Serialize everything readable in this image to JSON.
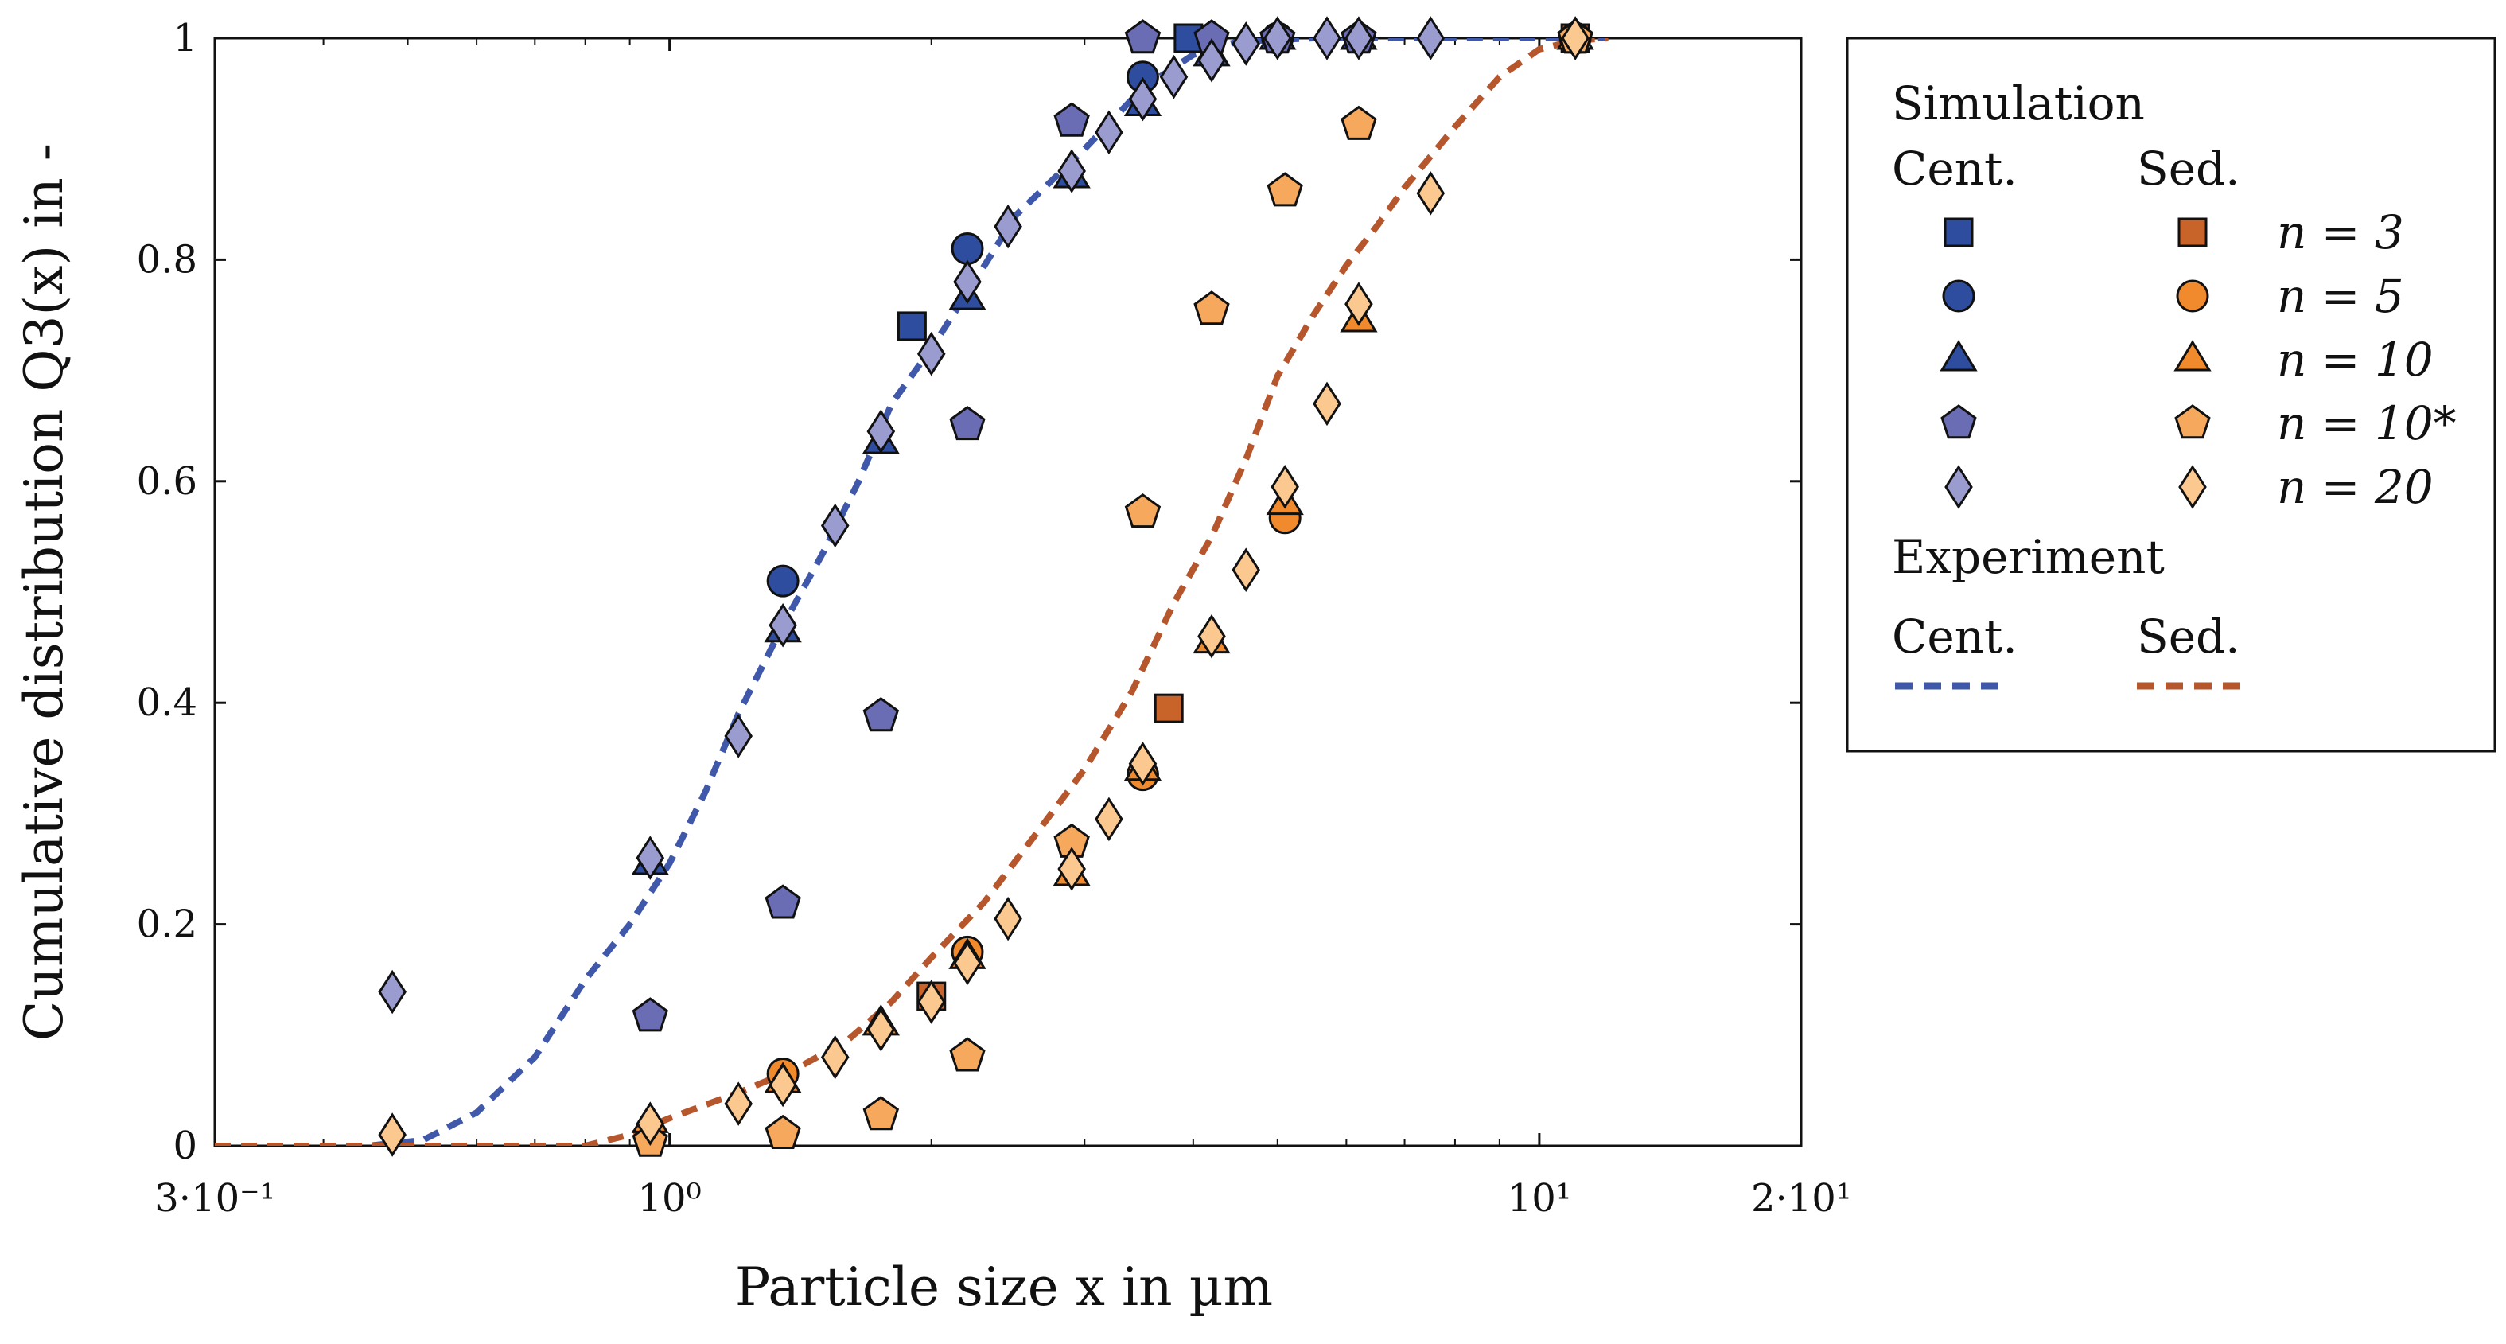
{
  "chart_data": {
    "type": "scatter",
    "title": "",
    "xlabel": "Particle size x in µm",
    "ylabel": "Cumulative distribution Q3(x) in -",
    "xscale": "log",
    "xlim": [
      0.3,
      20
    ],
    "ylim": [
      0,
      1
    ],
    "x_ticks": [
      {
        "value": 0.3,
        "label": "3·10⁻¹"
      },
      {
        "value": 1,
        "label": "10⁰"
      },
      {
        "value": 10,
        "label": "10¹"
      },
      {
        "value": 20,
        "label": "2·10¹"
      }
    ],
    "y_ticks": [
      {
        "value": 0,
        "label": "0"
      },
      {
        "value": 0.2,
        "label": "0.2"
      },
      {
        "value": 0.4,
        "label": "0.4"
      },
      {
        "value": 0.6,
        "label": "0.6"
      },
      {
        "value": 0.8,
        "label": "0.8"
      },
      {
        "value": 1,
        "label": "1"
      }
    ],
    "legend_position": "outside-right",
    "colors": {
      "cent_fill": "#2e4d9e",
      "cent_pent_fill": "#6a6db3",
      "cent_diam_fill": "#9a9cd0",
      "sed_sq_fill": "#c8632a",
      "sed_circ_fill": "#f08a2c",
      "sed_pent_fill": "#f6a85c",
      "sed_diam_fill": "#fbc88f",
      "cent_line": "#3f58aa",
      "sed_line": "#b5562c"
    },
    "series": [
      {
        "name": "Cent. n = 3",
        "group": "centrifugation",
        "marker": "square",
        "fill": "#2e4d9e",
        "points": [
          [
            1.9,
            0.74
          ],
          [
            3.95,
            1.0
          ]
        ]
      },
      {
        "name": "Cent. n = 5",
        "group": "centrifugation",
        "marker": "circle",
        "fill": "#2e4d9e",
        "points": [
          [
            1.35,
            0.51
          ],
          [
            2.2,
            0.81
          ],
          [
            3.5,
            0.965
          ],
          [
            5,
            1.0
          ]
        ]
      },
      {
        "name": "Cent. n = 10",
        "group": "centrifugation",
        "marker": "triangle",
        "fill": "#2e4d9e",
        "points": [
          [
            0.95,
            0.255
          ],
          [
            1.35,
            0.465
          ],
          [
            1.75,
            0.635
          ],
          [
            2.2,
            0.765
          ],
          [
            2.9,
            0.875
          ],
          [
            3.5,
            0.94
          ],
          [
            4.2,
            0.985
          ],
          [
            5,
            1.0
          ],
          [
            6.2,
            1.0
          ]
        ]
      },
      {
        "name": "Cent. n = 10*",
        "group": "centrifugation",
        "marker": "pentagon",
        "fill": "#6a6db3",
        "points": [
          [
            0.95,
            0.117
          ],
          [
            1.35,
            0.219
          ],
          [
            1.75,
            0.388
          ],
          [
            2.2,
            0.651
          ],
          [
            2.9,
            0.925
          ],
          [
            3.5,
            1.0
          ],
          [
            4.2,
            1.0
          ],
          [
            5,
            1.0
          ],
          [
            6.2,
            1.0
          ],
          [
            11,
            1.0
          ]
        ]
      },
      {
        "name": "Cent. n = 20",
        "group": "centrifugation",
        "marker": "diamond",
        "fill": "#9a9cd0",
        "points": [
          [
            0.48,
            0.139
          ],
          [
            0.95,
            0.26
          ],
          [
            1.2,
            0.37
          ],
          [
            1.35,
            0.47
          ],
          [
            1.55,
            0.56
          ],
          [
            1.75,
            0.645
          ],
          [
            2.0,
            0.715
          ],
          [
            2.2,
            0.78
          ],
          [
            2.45,
            0.83
          ],
          [
            2.9,
            0.88
          ],
          [
            3.2,
            0.915
          ],
          [
            3.5,
            0.945
          ],
          [
            3.8,
            0.965
          ],
          [
            4.2,
            0.98
          ],
          [
            4.6,
            0.995
          ],
          [
            5,
            1.0
          ],
          [
            5.7,
            1.0
          ],
          [
            6.2,
            1.0
          ],
          [
            7.5,
            1.0
          ],
          [
            11,
            1.0
          ]
        ]
      },
      {
        "name": "Sed. n = 3",
        "group": "sedimentation",
        "marker": "square",
        "fill": "#c8632a",
        "points": [
          [
            2.0,
            0.135
          ],
          [
            3.75,
            0.395
          ],
          [
            11,
            1.0
          ]
        ]
      },
      {
        "name": "Sed. n = 5",
        "group": "sedimentation",
        "marker": "circle",
        "fill": "#f08a2c",
        "points": [
          [
            1.35,
            0.065
          ],
          [
            2.2,
            0.175
          ],
          [
            3.5,
            0.335
          ],
          [
            5.1,
            0.567
          ],
          [
            11,
            1.0
          ]
        ]
      },
      {
        "name": "Sed. n = 10",
        "group": "sedimentation",
        "marker": "triangle",
        "fill": "#f08a2c",
        "points": [
          [
            0.95,
            0.022
          ],
          [
            1.35,
            0.058
          ],
          [
            1.75,
            0.11
          ],
          [
            2.2,
            0.17
          ],
          [
            2.9,
            0.245
          ],
          [
            3.5,
            0.34
          ],
          [
            4.2,
            0.455
          ],
          [
            5.1,
            0.58
          ],
          [
            6.2,
            0.745
          ],
          [
            11,
            1.0
          ]
        ]
      },
      {
        "name": "Sed. n = 10*",
        "group": "sedimentation",
        "marker": "pentagon",
        "fill": "#f6a85c",
        "points": [
          [
            0.95,
            0.004
          ],
          [
            1.35,
            0.011
          ],
          [
            1.75,
            0.028
          ],
          [
            2.2,
            0.081
          ],
          [
            2.9,
            0.274
          ],
          [
            3.5,
            0.572
          ],
          [
            4.2,
            0.755
          ],
          [
            5.1,
            0.862
          ],
          [
            6.2,
            0.922
          ],
          [
            11,
            1.0
          ]
        ]
      },
      {
        "name": "Sed. n = 20",
        "group": "sedimentation",
        "marker": "diamond",
        "fill": "#fbc88f",
        "points": [
          [
            0.48,
            0.01
          ],
          [
            0.95,
            0.02
          ],
          [
            1.2,
            0.038
          ],
          [
            1.35,
            0.055
          ],
          [
            1.55,
            0.08
          ],
          [
            1.75,
            0.105
          ],
          [
            2.0,
            0.13
          ],
          [
            2.2,
            0.165
          ],
          [
            2.45,
            0.205
          ],
          [
            2.9,
            0.25
          ],
          [
            3.2,
            0.295
          ],
          [
            3.5,
            0.345
          ],
          [
            4.2,
            0.46
          ],
          [
            4.6,
            0.52
          ],
          [
            5.1,
            0.595
          ],
          [
            5.7,
            0.67
          ],
          [
            6.2,
            0.76
          ],
          [
            7.5,
            0.86
          ],
          [
            11,
            1.0
          ]
        ]
      }
    ],
    "lines": [
      {
        "name": "Experiment Cent.",
        "group": "centrifugation",
        "style": "dashed",
        "color": "#3f58aa",
        "points": [
          [
            0.3,
            0.0
          ],
          [
            0.45,
            0.0
          ],
          [
            0.52,
            0.005
          ],
          [
            0.6,
            0.03
          ],
          [
            0.7,
            0.08
          ],
          [
            0.8,
            0.15
          ],
          [
            0.9,
            0.2
          ],
          [
            1.0,
            0.255
          ],
          [
            1.1,
            0.32
          ],
          [
            1.2,
            0.39
          ],
          [
            1.35,
            0.47
          ],
          [
            1.5,
            0.535
          ],
          [
            1.65,
            0.6
          ],
          [
            1.8,
            0.67
          ],
          [
            2.0,
            0.72
          ],
          [
            2.2,
            0.77
          ],
          [
            2.5,
            0.84
          ],
          [
            3.0,
            0.9
          ],
          [
            3.5,
            0.955
          ],
          [
            4.0,
            0.985
          ],
          [
            4.5,
            0.997
          ],
          [
            5.5,
            1.0
          ],
          [
            12,
            1.0
          ]
        ]
      },
      {
        "name": "Experiment Sed.",
        "group": "sedimentation",
        "style": "dashed",
        "color": "#b5562c",
        "points": [
          [
            0.3,
            0.0
          ],
          [
            0.8,
            0.0
          ],
          [
            0.9,
            0.01
          ],
          [
            1.0,
            0.025
          ],
          [
            1.2,
            0.048
          ],
          [
            1.4,
            0.07
          ],
          [
            1.6,
            0.095
          ],
          [
            1.8,
            0.13
          ],
          [
            2.0,
            0.17
          ],
          [
            2.3,
            0.22
          ],
          [
            2.6,
            0.275
          ],
          [
            3.0,
            0.34
          ],
          [
            3.4,
            0.41
          ],
          [
            3.8,
            0.49
          ],
          [
            4.2,
            0.55
          ],
          [
            4.6,
            0.62
          ],
          [
            5.0,
            0.695
          ],
          [
            5.5,
            0.75
          ],
          [
            6.0,
            0.795
          ],
          [
            6.5,
            0.83
          ],
          [
            7.0,
            0.865
          ],
          [
            8.0,
            0.92
          ],
          [
            9.0,
            0.965
          ],
          [
            10.0,
            0.99
          ],
          [
            11,
            0.998
          ],
          [
            12,
            1.0
          ]
        ]
      }
    ]
  },
  "legend": {
    "simulation_title": "Simulation",
    "cent_header": "Cent.",
    "sed_header": "Sed.",
    "rows": [
      {
        "label": "n = 3",
        "marker": "square"
      },
      {
        "label": "n = 5",
        "marker": "circle"
      },
      {
        "label": "n = 10",
        "marker": "triangle"
      },
      {
        "label": "n = 10*",
        "marker": "pentagon"
      },
      {
        "label": "n = 20",
        "marker": "diamond"
      }
    ],
    "experiment_title": "Experiment",
    "exp_cent_label": "Cent.",
    "exp_sed_label": "Sed."
  }
}
